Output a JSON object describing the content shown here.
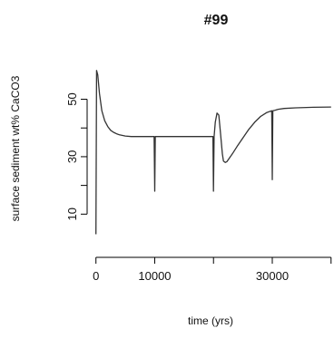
{
  "chart_data": {
    "type": "line",
    "title": "#99",
    "xlabel": "time (yrs)",
    "ylabel": "surface sediment wt% CaCO3",
    "xlim": [
      -1500,
      40500
    ],
    "ylim": [
      0,
      65
    ],
    "x_ticks": [
      0,
      10000,
      20000,
      30000,
      40000
    ],
    "x_tick_labels": [
      "0",
      "10000",
      "",
      "30000",
      ""
    ],
    "y_ticks": [
      10,
      20,
      30,
      40,
      50
    ],
    "y_tick_labels": [
      "10",
      "",
      "30",
      "",
      "50"
    ],
    "grid": false,
    "legend": "none",
    "line_color": "#333333",
    "series": [
      {
        "x": [
          0,
          100,
          300,
          600,
          1000,
          1500,
          2000,
          2500,
          3000,
          3500,
          4000,
          5000,
          6000,
          7000,
          8000,
          9000,
          9900,
          10000,
          10100,
          10500,
          12000,
          15000,
          19000,
          19900,
          20000,
          20100,
          20300,
          20600,
          20900,
          21200,
          21500,
          21700,
          22000,
          22300,
          22700,
          23200,
          24000,
          25000,
          26000,
          27000,
          28000,
          29000,
          29900,
          30000,
          30100,
          30500,
          31000,
          32000,
          34000,
          37000,
          40000
        ],
        "y": [
          3,
          60,
          58.5,
          52,
          46,
          42.5,
          40.5,
          39.2,
          38.5,
          38,
          37.6,
          37.2,
          37,
          37,
          37,
          37,
          37,
          18,
          37,
          37,
          37,
          37,
          37,
          37,
          18,
          37,
          42,
          45.2,
          44.5,
          38,
          31,
          28.5,
          28,
          28.3,
          29.5,
          31,
          33.5,
          36.5,
          39.5,
          42,
          44,
          45.3,
          46,
          22,
          46,
          46.2,
          46.5,
          46.8,
          47,
          47.2,
          47.3
        ]
      }
    ]
  }
}
